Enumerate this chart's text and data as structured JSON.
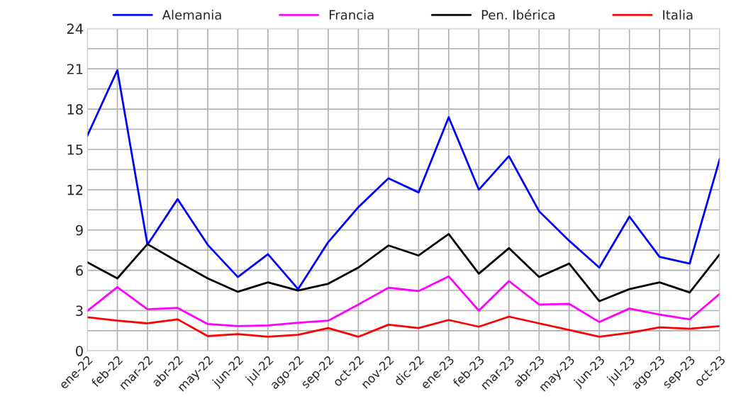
{
  "chart_data": {
    "type": "line",
    "categories": [
      "ene-22",
      "feb-22",
      "mar-22",
      "abr-22",
      "may-22",
      "jun-22",
      "jul-22",
      "ago-22",
      "sep-22",
      "oct-22",
      "nov-22",
      "dic-22",
      "ene-23",
      "feb-23",
      "mar-23",
      "abr-23",
      "may-23",
      "jun-23",
      "jul-23",
      "ago-23",
      "sep-23",
      "oct-23"
    ],
    "series": [
      {
        "name": "Alemania",
        "color": "#0000ff",
        "values": [
          16.0,
          20.9,
          7.9,
          11.3,
          7.9,
          5.5,
          7.2,
          4.6,
          8.1,
          10.7,
          12.85,
          11.8,
          17.4,
          12.0,
          14.5,
          10.4,
          8.2,
          6.2,
          10.0,
          7.0,
          6.5,
          14.3
        ]
      },
      {
        "name": "Francia",
        "color": "#ff00ff",
        "values": [
          2.97,
          4.75,
          3.1,
          3.2,
          2.0,
          1.85,
          1.9,
          2.1,
          2.25,
          3.45,
          4.7,
          4.45,
          5.55,
          3.0,
          5.2,
          3.45,
          3.5,
          2.15,
          3.15,
          2.7,
          2.35,
          4.25
        ]
      },
      {
        "name": "Pen. Ibérica",
        "color": "#000000",
        "values": [
          6.6,
          5.4,
          7.95,
          6.65,
          5.4,
          4.4,
          5.1,
          4.5,
          5.0,
          6.2,
          7.85,
          7.1,
          8.7,
          5.75,
          7.65,
          5.5,
          6.5,
          3.7,
          4.6,
          5.1,
          4.35,
          7.2
        ]
      },
      {
        "name": "Italia",
        "color": "#ff0000",
        "values": [
          2.5,
          2.25,
          2.05,
          2.35,
          1.1,
          1.25,
          1.05,
          1.2,
          1.7,
          1.05,
          1.95,
          1.7,
          2.3,
          1.8,
          2.55,
          2.05,
          1.55,
          1.05,
          1.35,
          1.75,
          1.65,
          1.85
        ]
      }
    ],
    "ylim": [
      0,
      24
    ],
    "yticks": [
      0,
      {
        "value": 1.5,
        "label": null
      },
      3,
      {
        "value": 4.5,
        "label": null
      },
      6,
      {
        "value": 7.5,
        "label": null
      },
      9,
      {
        "value": 10.5,
        "label": null
      },
      12,
      {
        "value": 13.5,
        "label": null
      },
      15,
      {
        "value": 16.5,
        "label": null
      },
      18,
      {
        "value": 19.5,
        "label": null
      },
      21,
      {
        "value": 22.5,
        "label": null
      },
      24
    ],
    "grid": true,
    "legend": "top",
    "marker": "none",
    "line_style": "solid"
  }
}
